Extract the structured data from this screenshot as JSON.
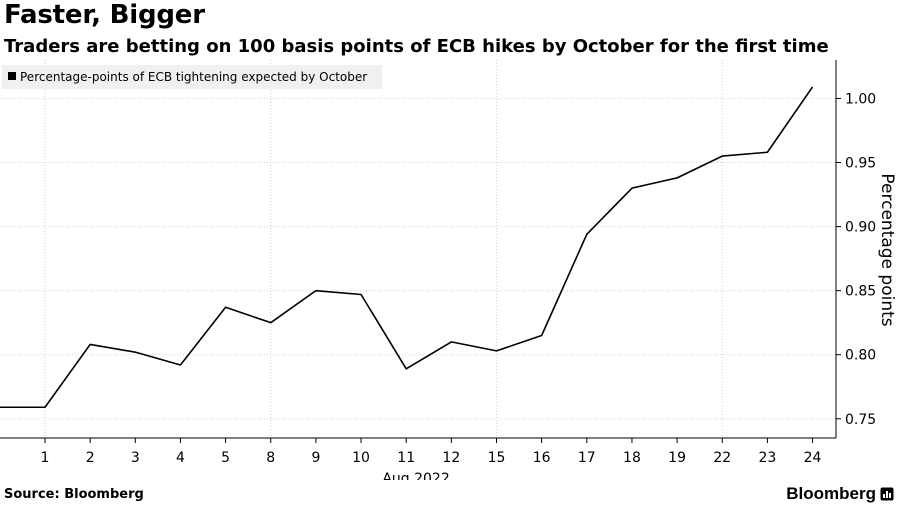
{
  "header": {
    "title": "Faster, Bigger",
    "subtitle": "Traders are betting on 100 basis points of ECB hikes by October for the first time"
  },
  "footer": {
    "source": "Source: Bloomberg",
    "brand": "Bloomberg"
  },
  "chart_data": {
    "type": "line",
    "title": "Faster, Bigger",
    "subtitle": "Traders are betting on 100 basis points of ECB hikes by October for the first time",
    "xlabel": "Aug 2022",
    "ylabel": "Percentage points",
    "legend": "top-left",
    "grid": true,
    "y_axis_side": "right",
    "ylim": [
      0.735,
      1.03
    ],
    "yticks": [
      0.75,
      0.8,
      0.85,
      0.9,
      0.95,
      1.0
    ],
    "ytick_labels": [
      "0.75",
      "0.80",
      "0.85",
      "0.90",
      "0.95",
      "1.00"
    ],
    "categories": [
      "",
      "1",
      "2",
      "3",
      "4",
      "5",
      "8",
      "9",
      "10",
      "11",
      "12",
      "15",
      "16",
      "17",
      "18",
      "19",
      "22",
      "23",
      "24"
    ],
    "x_group_label": "Aug 2022",
    "x_group_label_under": "10",
    "series": [
      {
        "name": "Percentage-points of ECB tightening expected by October",
        "color": "#000000",
        "values": [
          0.759,
          0.759,
          0.808,
          0.802,
          0.792,
          0.837,
          0.825,
          0.85,
          0.847,
          0.789,
          0.81,
          0.803,
          0.815,
          0.894,
          0.93,
          0.938,
          0.955,
          0.958,
          1.009
        ]
      }
    ]
  }
}
